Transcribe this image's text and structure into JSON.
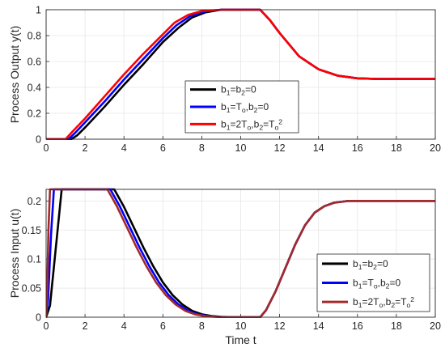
{
  "chart_data": [
    {
      "type": "line",
      "title": "",
      "xlabel": "",
      "ylabel": "Process Output y(t)",
      "xlim": [
        0,
        20
      ],
      "ylim": [
        0,
        1
      ],
      "xticks": [
        "0",
        "2",
        "4",
        "6",
        "8",
        "10",
        "12",
        "14",
        "16",
        "18",
        "20"
      ],
      "yticks": [
        "0",
        "0.2",
        "0.4",
        "0.6",
        "0.8",
        "1"
      ],
      "grid": true,
      "legend_position": "center-right",
      "series": [
        {
          "name": "b1=b2=0",
          "legend": [
            {
              "t": "b"
            },
            {
              "t": "1",
              "sub": true
            },
            {
              "t": "=b"
            },
            {
              "t": "2",
              "sub": true
            },
            {
              "t": "=0"
            }
          ],
          "color": "#000000",
          "x": [
            0,
            1.3,
            1.6,
            2,
            3,
            4,
            5,
            6,
            6.8,
            7.5,
            8.2,
            9,
            11,
            11.5,
            12,
            12.5,
            13,
            14,
            15,
            16,
            17,
            18,
            20
          ],
          "y": [
            0,
            0,
            0.03,
            0.09,
            0.25,
            0.42,
            0.58,
            0.75,
            0.86,
            0.94,
            0.98,
            1.0,
            1.0,
            0.92,
            0.82,
            0.73,
            0.64,
            0.54,
            0.49,
            0.47,
            0.465,
            0.465,
            0.465
          ]
        },
        {
          "name": "b1=To,b2=0",
          "legend": [
            {
              "t": "b"
            },
            {
              "t": "1",
              "sub": true
            },
            {
              "t": "=T"
            },
            {
              "t": "o",
              "sub": true
            },
            {
              "t": ",b"
            },
            {
              "t": "2",
              "sub": true
            },
            {
              "t": "=0"
            }
          ],
          "color": "#0000ff",
          "x": [
            0,
            1.15,
            1.5,
            2,
            3,
            4,
            5,
            6,
            6.7,
            7.4,
            8.1,
            9,
            11,
            11.5,
            12,
            12.5,
            13,
            14,
            15,
            16,
            17,
            18,
            20
          ],
          "y": [
            0,
            0,
            0.05,
            0.13,
            0.29,
            0.46,
            0.62,
            0.78,
            0.88,
            0.95,
            0.985,
            1.0,
            1.0,
            0.92,
            0.82,
            0.73,
            0.64,
            0.54,
            0.49,
            0.47,
            0.465,
            0.465,
            0.465
          ]
        },
        {
          "name": "b1=2To,b2=To2",
          "legend": [
            {
              "t": "b"
            },
            {
              "t": "1",
              "sub": true
            },
            {
              "t": "=2T"
            },
            {
              "t": "o",
              "sub": true
            },
            {
              "t": ",b"
            },
            {
              "t": "2",
              "sub": true
            },
            {
              "t": "=T"
            },
            {
              "t": "o",
              "sub": true
            },
            {
              "t": "2",
              "sup": true
            }
          ],
          "color": "#ff0000",
          "x": [
            0,
            1.0,
            1.3,
            2,
            3,
            4,
            5,
            6,
            6.6,
            7.3,
            8.0,
            9,
            11,
            11.5,
            12,
            12.5,
            13,
            14,
            15,
            16,
            17,
            18,
            20
          ],
          "y": [
            0,
            0,
            0.05,
            0.16,
            0.33,
            0.5,
            0.66,
            0.81,
            0.9,
            0.96,
            0.99,
            1.0,
            1.0,
            0.92,
            0.82,
            0.73,
            0.64,
            0.54,
            0.49,
            0.47,
            0.465,
            0.465,
            0.465
          ]
        }
      ]
    },
    {
      "type": "line",
      "title": "",
      "xlabel": "Time t",
      "ylabel": "Process Input u(t)",
      "xlim": [
        0,
        20
      ],
      "ylim": [
        0,
        0.22
      ],
      "xticks": [
        "0",
        "2",
        "4",
        "6",
        "8",
        "10",
        "12",
        "14",
        "16",
        "18",
        "20"
      ],
      "yticks": [
        "0",
        "0.05",
        "0.1",
        "0.15",
        "0.2"
      ],
      "grid": true,
      "legend_position": "bottom-right",
      "series": [
        {
          "name": "b1=b2=0",
          "legend": [
            {
              "t": "b"
            },
            {
              "t": "1",
              "sub": true
            },
            {
              "t": "=b"
            },
            {
              "t": "2",
              "sub": true
            },
            {
              "t": "=0"
            }
          ],
          "color": "#000000",
          "x": [
            0,
            0.2,
            0.5,
            0.8,
            3.5,
            4,
            4.5,
            5,
            5.5,
            6,
            6.5,
            7,
            7.5,
            8,
            8.5,
            9,
            9.5,
            11,
            11.3,
            11.8,
            12.3,
            12.8,
            13.3,
            13.8,
            14.3,
            14.8,
            15.5,
            16,
            17,
            18,
            20
          ],
          "y": [
            0,
            0.02,
            0.12,
            0.22,
            0.22,
            0.19,
            0.155,
            0.12,
            0.088,
            0.06,
            0.038,
            0.022,
            0.011,
            0.005,
            0.002,
            0.0007,
            0,
            0,
            0.012,
            0.045,
            0.085,
            0.125,
            0.158,
            0.18,
            0.191,
            0.197,
            0.2,
            0.2,
            0.2,
            0.2,
            0.2
          ]
        },
        {
          "name": "b1=To,b2=0",
          "legend": [
            {
              "t": "b"
            },
            {
              "t": "1",
              "sub": true
            },
            {
              "t": "=T"
            },
            {
              "t": "o",
              "sub": true
            },
            {
              "t": ",b"
            },
            {
              "t": "2",
              "sub": true
            },
            {
              "t": "=0"
            }
          ],
          "color": "#0000ff",
          "x": [
            0,
            0.1,
            0.25,
            0.4,
            3.3,
            3.8,
            4.3,
            4.8,
            5.3,
            5.8,
            6.3,
            6.8,
            7.3,
            7.8,
            8.3,
            8.8,
            9.3,
            11,
            11.3,
            11.8,
            12.3,
            12.8,
            13.3,
            13.8,
            14.3,
            14.8,
            15.5,
            16,
            17,
            18,
            20
          ],
          "y": [
            0,
            0.03,
            0.14,
            0.22,
            0.22,
            0.19,
            0.155,
            0.12,
            0.088,
            0.06,
            0.038,
            0.022,
            0.011,
            0.005,
            0.002,
            0.0007,
            0,
            0,
            0.012,
            0.045,
            0.085,
            0.125,
            0.158,
            0.18,
            0.191,
            0.197,
            0.2,
            0.2,
            0.2,
            0.2,
            0.2
          ]
        },
        {
          "name": "b1=2To,b2=To2",
          "legend": [
            {
              "t": "b"
            },
            {
              "t": "1",
              "sub": true
            },
            {
              "t": "=2T"
            },
            {
              "t": "o",
              "sub": true
            },
            {
              "t": ",b"
            },
            {
              "t": "2",
              "sub": true
            },
            {
              "t": "=T"
            },
            {
              "t": "o",
              "sub": true
            },
            {
              "t": "2",
              "sup": true
            }
          ],
          "color": "#a52a2a",
          "x": [
            0,
            0.05,
            0.12,
            0.2,
            3.15,
            3.65,
            4.15,
            4.65,
            5.15,
            5.65,
            6.15,
            6.65,
            7.15,
            7.65,
            8.15,
            8.65,
            9.15,
            11,
            11.3,
            11.8,
            12.3,
            12.8,
            13.3,
            13.8,
            14.3,
            14.8,
            15.5,
            16,
            17,
            18,
            20
          ],
          "y": [
            0,
            0.04,
            0.15,
            0.22,
            0.22,
            0.19,
            0.155,
            0.12,
            0.088,
            0.06,
            0.038,
            0.022,
            0.011,
            0.005,
            0.002,
            0.0007,
            0,
            0,
            0.012,
            0.045,
            0.085,
            0.125,
            0.158,
            0.18,
            0.191,
            0.197,
            0.2,
            0.2,
            0.2,
            0.2,
            0.2
          ]
        }
      ]
    }
  ]
}
